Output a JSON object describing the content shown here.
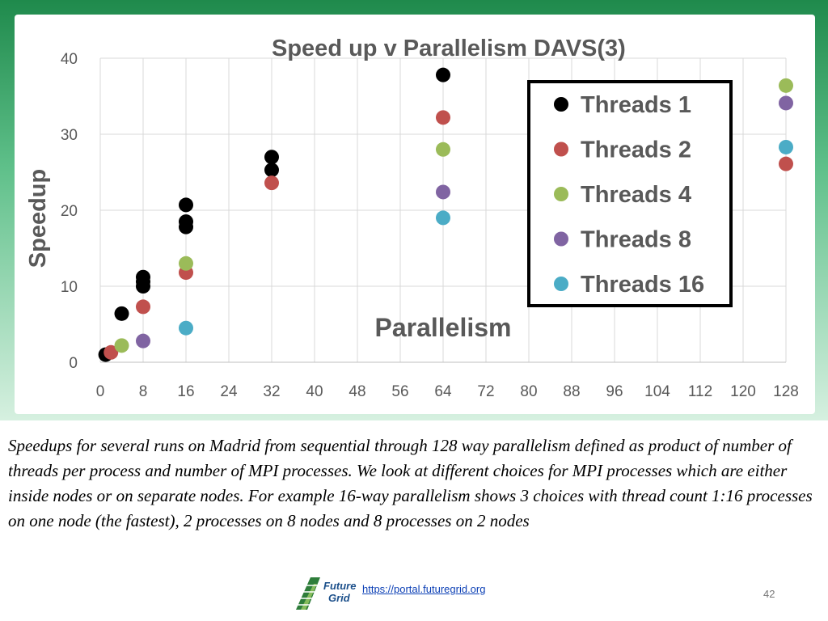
{
  "chart_data": {
    "type": "scatter",
    "title": "Speed up v Parallelism  DAVS(3)",
    "xlabel": "Parallelism",
    "ylabel": "Speedup",
    "xlim": [
      0,
      128
    ],
    "ylim": [
      0,
      40
    ],
    "xticks": [
      0,
      8,
      16,
      24,
      32,
      40,
      48,
      56,
      64,
      72,
      80,
      88,
      96,
      104,
      112,
      120,
      128
    ],
    "yticks": [
      0,
      10,
      20,
      30,
      40
    ],
    "grid": true,
    "legend_position": "top-right",
    "series": [
      {
        "name": "Threads 1",
        "color": "#000000",
        "points": [
          [
            1,
            1.0
          ],
          [
            4,
            6.4
          ],
          [
            8,
            10.0
          ],
          [
            8,
            10.6
          ],
          [
            8,
            11.2
          ],
          [
            16,
            17.8
          ],
          [
            16,
            18.5
          ],
          [
            16,
            20.7
          ],
          [
            32,
            25.3
          ],
          [
            32,
            27.0
          ],
          [
            64,
            37.8
          ]
        ]
      },
      {
        "name": "Threads 2",
        "color": "#c0504d",
        "points": [
          [
            2,
            1.3
          ],
          [
            8,
            7.3
          ],
          [
            16,
            11.8
          ],
          [
            32,
            23.6
          ],
          [
            64,
            32.2
          ],
          [
            128,
            26.1
          ]
        ]
      },
      {
        "name": "Threads 4",
        "color": "#9bbb59",
        "points": [
          [
            4,
            2.2
          ],
          [
            16,
            13.0
          ],
          [
            64,
            28.0
          ],
          [
            128,
            36.4
          ]
        ]
      },
      {
        "name": "Threads 8",
        "color": "#8064a2",
        "points": [
          [
            8,
            2.8
          ],
          [
            64,
            22.4
          ],
          [
            128,
            34.1
          ]
        ]
      },
      {
        "name": "Threads 16",
        "color": "#4bacc6",
        "points": [
          [
            16,
            4.5
          ],
          [
            64,
            19.0
          ],
          [
            128,
            28.3
          ]
        ]
      }
    ]
  },
  "caption": "Speedups for several runs on Madrid from sequential through 128 way parallelism defined as product of number of threads per process and number of MPI processes. We look at different choices for MPI processes which are either inside nodes or on separate nodes. For example 16-way parallelism shows 3 choices with thread count 1:16 processes on one node (the fastest), 2 processes on 8 nodes and 8 processes on 2 nodes",
  "footer": {
    "logo_line1": "Future",
    "logo_line2": "Grid",
    "url": "https://portal.futuregrid.org",
    "page_number": "42"
  }
}
